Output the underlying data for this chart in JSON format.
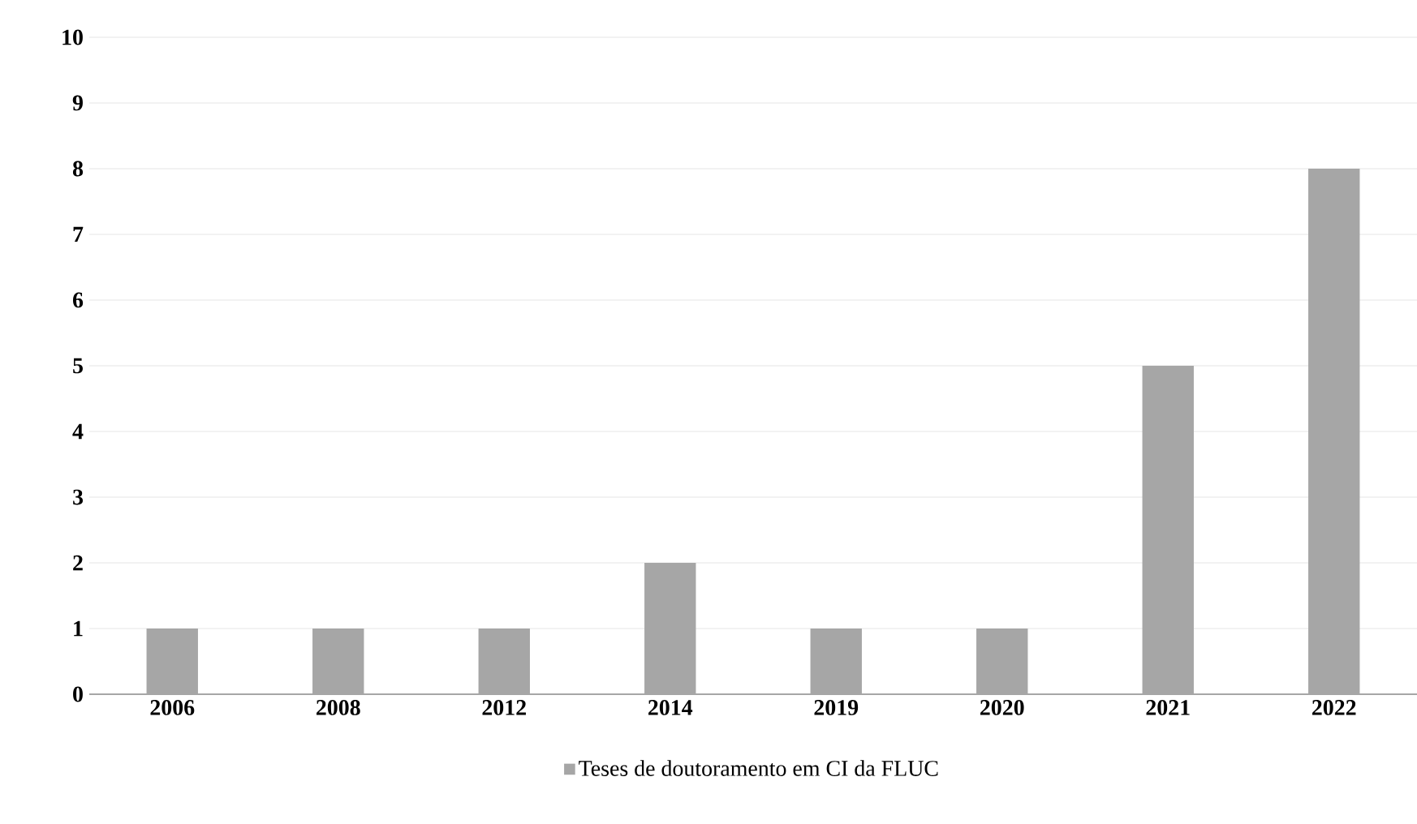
{
  "chart_data": {
    "type": "bar",
    "categories": [
      "2006",
      "2008",
      "2012",
      "2014",
      "2019",
      "2020",
      "2021",
      "2022"
    ],
    "series": [
      {
        "name": "Teses de doutoramento em CI da FLUC",
        "color": "#a6a6a6",
        "values": [
          1,
          1,
          1,
          2,
          1,
          1,
          5,
          8
        ]
      }
    ],
    "ylim": [
      0,
      10
    ],
    "yticks": [
      0,
      1,
      2,
      3,
      4,
      5,
      6,
      7,
      8,
      9,
      10
    ],
    "grid": "y",
    "legend": "bottom"
  }
}
